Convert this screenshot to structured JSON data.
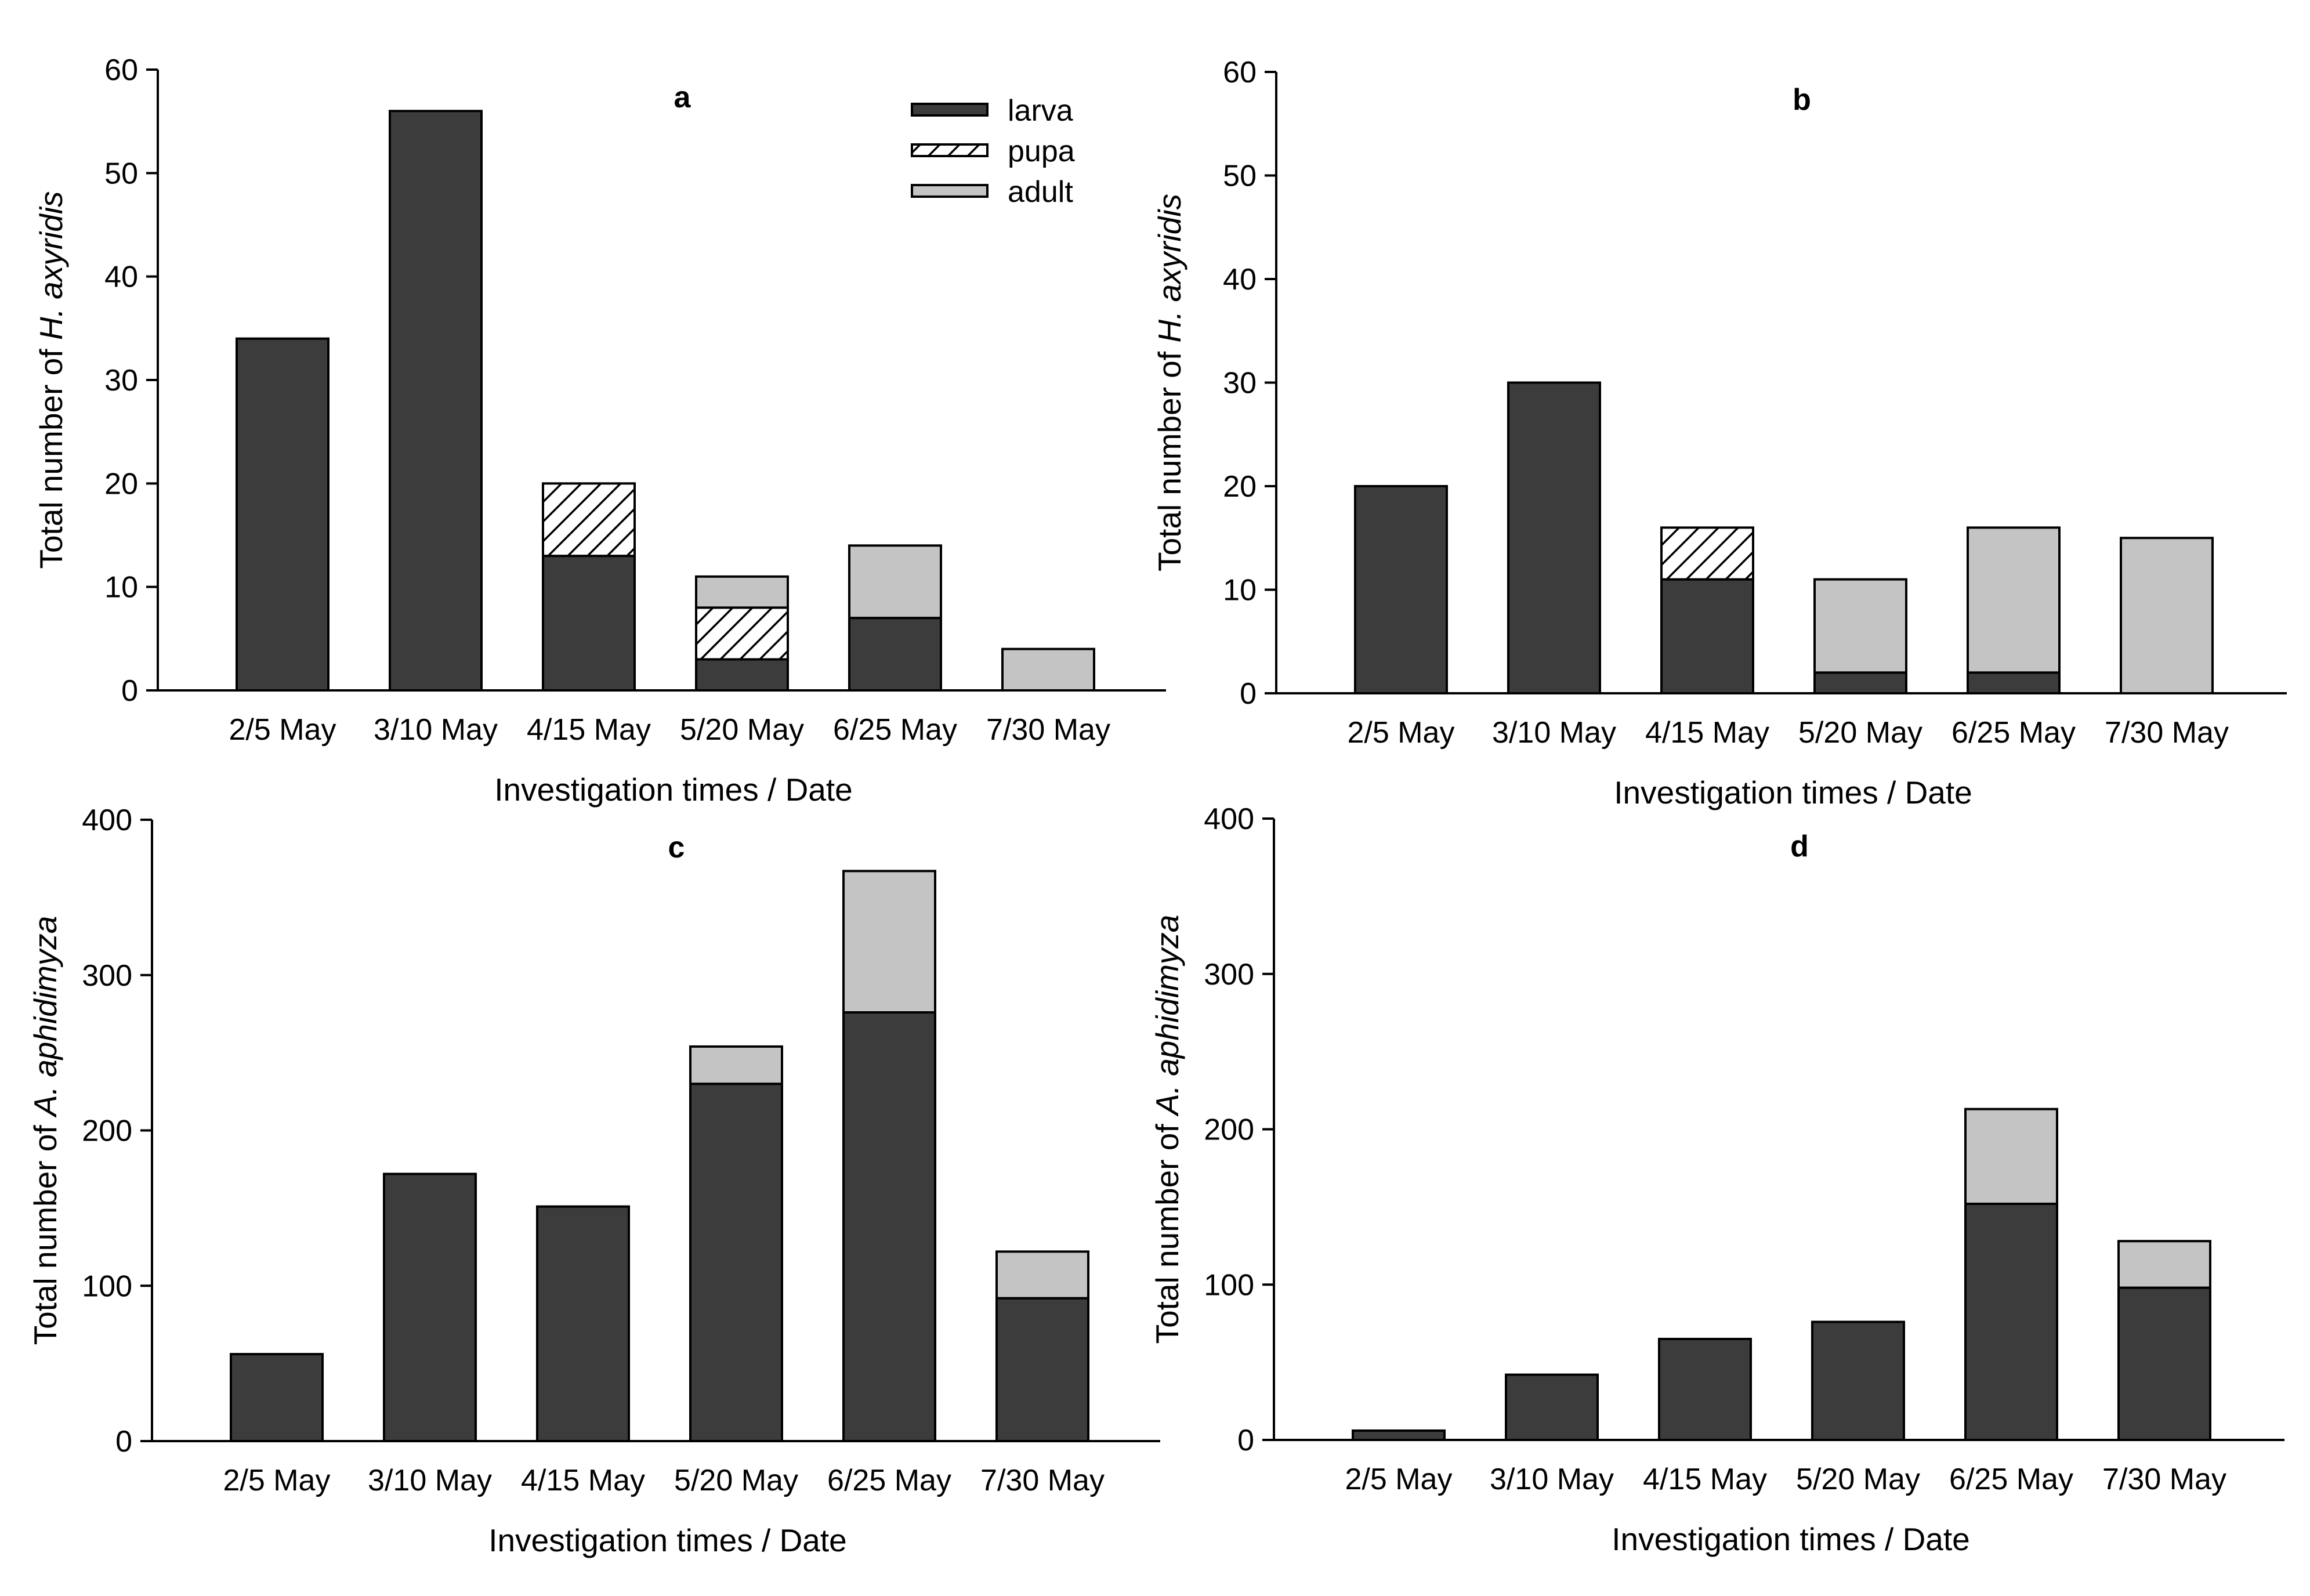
{
  "colors": {
    "larva": "#3c3c3c",
    "pupa_hatch": "#000000",
    "adult": "#c4c4c4",
    "axis": "#000000",
    "background": "#ffffff"
  },
  "legend": {
    "placement": "top-right of panel a",
    "items": [
      {
        "key": "larva",
        "label": "larva",
        "fill": "solid-dark"
      },
      {
        "key": "pupa",
        "label": "pupa",
        "fill": "hatched"
      },
      {
        "key": "adult",
        "label": "adult",
        "fill": "solid-light"
      }
    ]
  },
  "chart_data": [
    {
      "type": "bar",
      "stacked": true,
      "panel": "a",
      "title": "a",
      "xlabel": "Investigation times / Date",
      "ylabel": "Total number of H. axyridis",
      "ylabel_parts": [
        {
          "text": "Total number of ",
          "italic": false
        },
        {
          "text": "H. axyridis",
          "italic": true
        }
      ],
      "ylim": [
        0,
        60
      ],
      "yticks": [
        0,
        10,
        20,
        30,
        40,
        50,
        60
      ],
      "categories": [
        "2/5 May",
        "3/10 May",
        "4/15 May",
        "5/20 May",
        "6/25 May",
        "7/30 May"
      ],
      "series": [
        {
          "name": "larva",
          "values": [
            34,
            56,
            13,
            3,
            7,
            0
          ]
        },
        {
          "name": "pupa",
          "values": [
            0,
            0,
            7,
            5,
            0,
            0
          ]
        },
        {
          "name": "adult",
          "values": [
            0,
            0,
            0,
            3,
            7,
            4
          ]
        }
      ]
    },
    {
      "type": "bar",
      "stacked": true,
      "panel": "b",
      "title": "b",
      "xlabel": "Investigation times / Date",
      "ylabel": "Total number of H. axyridis",
      "ylabel_parts": [
        {
          "text": "Total number of ",
          "italic": false
        },
        {
          "text": "H. axyridis",
          "italic": true
        }
      ],
      "ylim": [
        0,
        60
      ],
      "yticks": [
        0,
        10,
        20,
        30,
        40,
        50,
        60
      ],
      "categories": [
        "2/5 May",
        "3/10 May",
        "4/15 May",
        "5/20 May",
        "6/25 May",
        "7/30 May"
      ],
      "series": [
        {
          "name": "larva",
          "values": [
            20,
            30,
            11,
            2,
            2,
            0
          ]
        },
        {
          "name": "pupa",
          "values": [
            0,
            0,
            5,
            0,
            0,
            0
          ]
        },
        {
          "name": "adult",
          "values": [
            0,
            0,
            0,
            9,
            14,
            15
          ]
        }
      ]
    },
    {
      "type": "bar",
      "stacked": true,
      "panel": "c",
      "title": "c",
      "xlabel": "Investigation times / Date",
      "ylabel": "Total number of A. aphidimyza",
      "ylabel_parts": [
        {
          "text": "Total number of ",
          "italic": false
        },
        {
          "text": "A. aphidimyza",
          "italic": true
        }
      ],
      "ylim": [
        0,
        400
      ],
      "yticks": [
        0,
        100,
        200,
        300,
        400
      ],
      "categories": [
        "2/5 May",
        "3/10 May",
        "4/15 May",
        "5/20 May",
        "6/25 May",
        "7/30 May"
      ],
      "series": [
        {
          "name": "larva",
          "values": [
            56,
            172,
            151,
            230,
            276,
            92
          ]
        },
        {
          "name": "pupa",
          "values": [
            0,
            0,
            0,
            0,
            0,
            0
          ]
        },
        {
          "name": "adult",
          "values": [
            0,
            0,
            0,
            24,
            91,
            30
          ]
        }
      ]
    },
    {
      "type": "bar",
      "stacked": true,
      "panel": "d",
      "title": "d",
      "xlabel": "Investigation times / Date",
      "ylabel": "Total number of A. aphidimyza",
      "ylabel_parts": [
        {
          "text": "Total number of ",
          "italic": false
        },
        {
          "text": "A. aphidimyza",
          "italic": true
        }
      ],
      "ylim": [
        0,
        400
      ],
      "yticks": [
        0,
        100,
        200,
        300,
        400
      ],
      "categories": [
        "2/5 May",
        "3/10 May",
        "4/15 May",
        "5/20 May",
        "6/25 May",
        "7/30 May"
      ],
      "series": [
        {
          "name": "larva",
          "values": [
            6,
            42,
            65,
            76,
            152,
            98
          ]
        },
        {
          "name": "pupa",
          "values": [
            0,
            0,
            0,
            0,
            0,
            0
          ]
        },
        {
          "name": "adult",
          "values": [
            0,
            0,
            0,
            0,
            61,
            30
          ]
        }
      ]
    }
  ]
}
